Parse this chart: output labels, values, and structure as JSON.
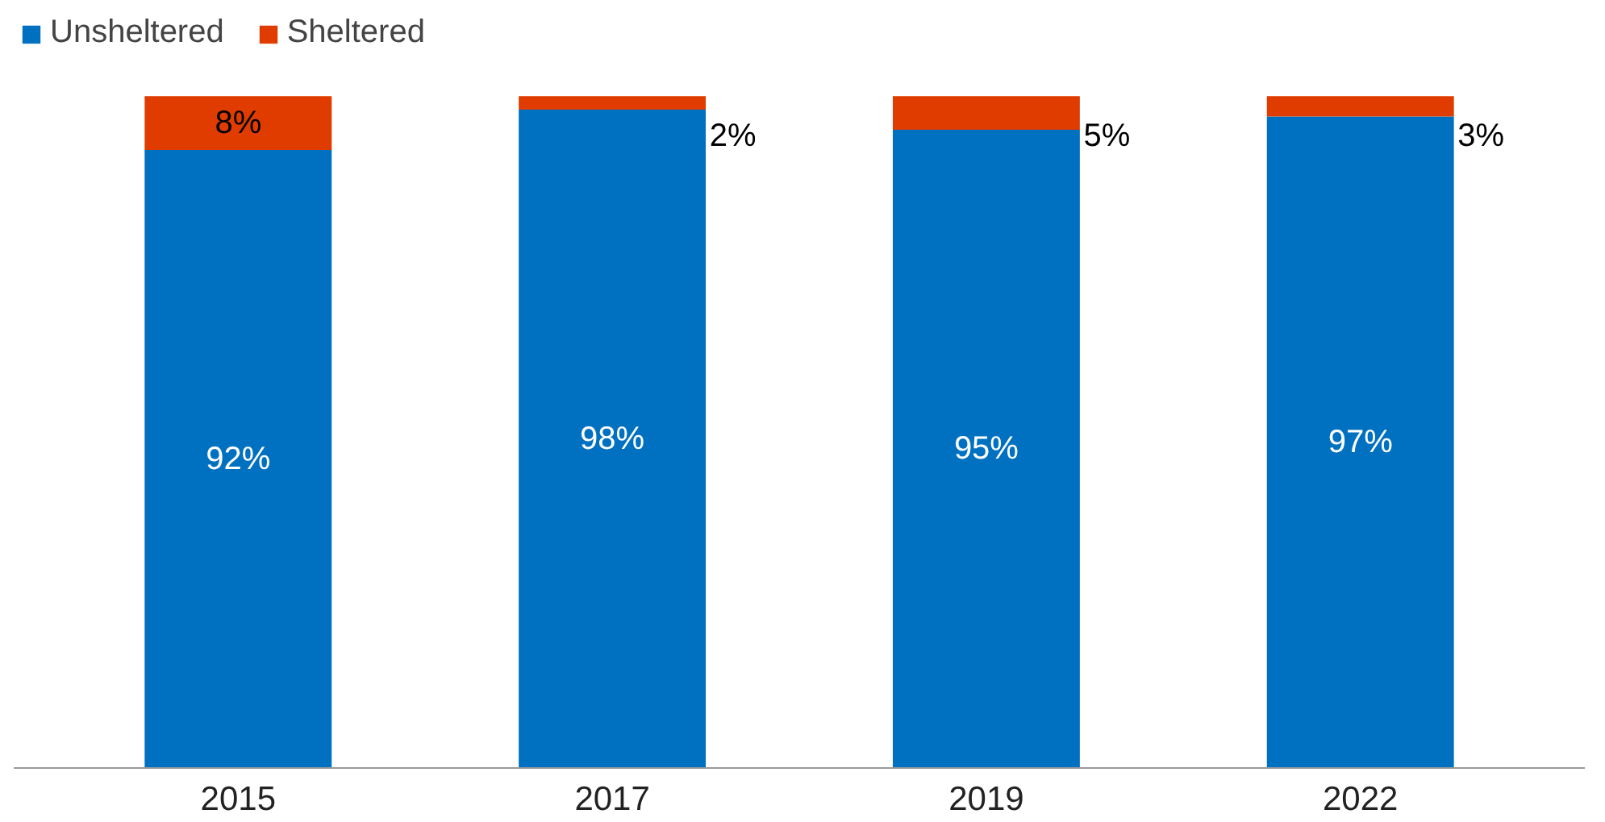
{
  "chart_data": {
    "type": "bar",
    "stacked": true,
    "categories": [
      "2015",
      "2017",
      "2019",
      "2022"
    ],
    "series": [
      {
        "name": "Unsheltered",
        "color": "#0070c0",
        "values": [
          92,
          98,
          95,
          97
        ],
        "value_labels": [
          "92%",
          "98%",
          "95%",
          "97%"
        ]
      },
      {
        "name": "Sheltered",
        "color": "#e03c00",
        "values": [
          8,
          2,
          5,
          3
        ],
        "value_labels": [
          "8%",
          "2%",
          "5%",
          "3%"
        ]
      }
    ],
    "tick_labels": "x",
    "grid": false,
    "legend": "top left"
  }
}
